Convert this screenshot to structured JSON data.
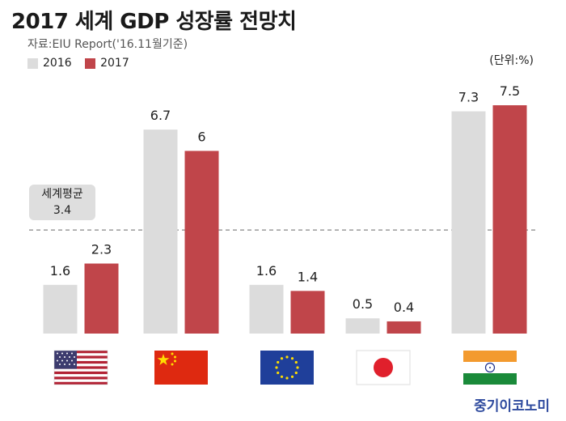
{
  "title": "2017 세계 GDP 성장률 전망치",
  "source": "자료:EIU Report('16.11월기준)",
  "unit": "(단위:%)",
  "brand": "중기이코노미",
  "colors": {
    "y2016": "#dcdcdc",
    "y2017": "#c0454a",
    "avg_line": "#9a9a9a",
    "avg_box": "#dedede"
  },
  "chart_data": {
    "type": "bar",
    "title": "2017 세계 GDP 성장률 전망치",
    "categories": [
      "us-flag",
      "china-flag",
      "eu-flag",
      "japan-flag",
      "india-flag"
    ],
    "series": [
      {
        "name": "2016",
        "values": [
          1.6,
          6.7,
          1.6,
          0.5,
          7.3
        ],
        "labels": [
          "1.6",
          "6.7",
          "1.6",
          "0.5",
          "7.3"
        ]
      },
      {
        "name": "2017",
        "values": [
          2.3,
          6,
          1.4,
          0.4,
          7.5
        ],
        "labels": [
          "2.3",
          "6",
          "1.4",
          "0.4",
          "7.5"
        ]
      }
    ],
    "reference": {
      "label": "세계평균",
      "value": 3.4,
      "value_label": "3.4"
    },
    "ylim": [
      0,
      7.5
    ],
    "legend_position": "top-left",
    "grid": false
  }
}
